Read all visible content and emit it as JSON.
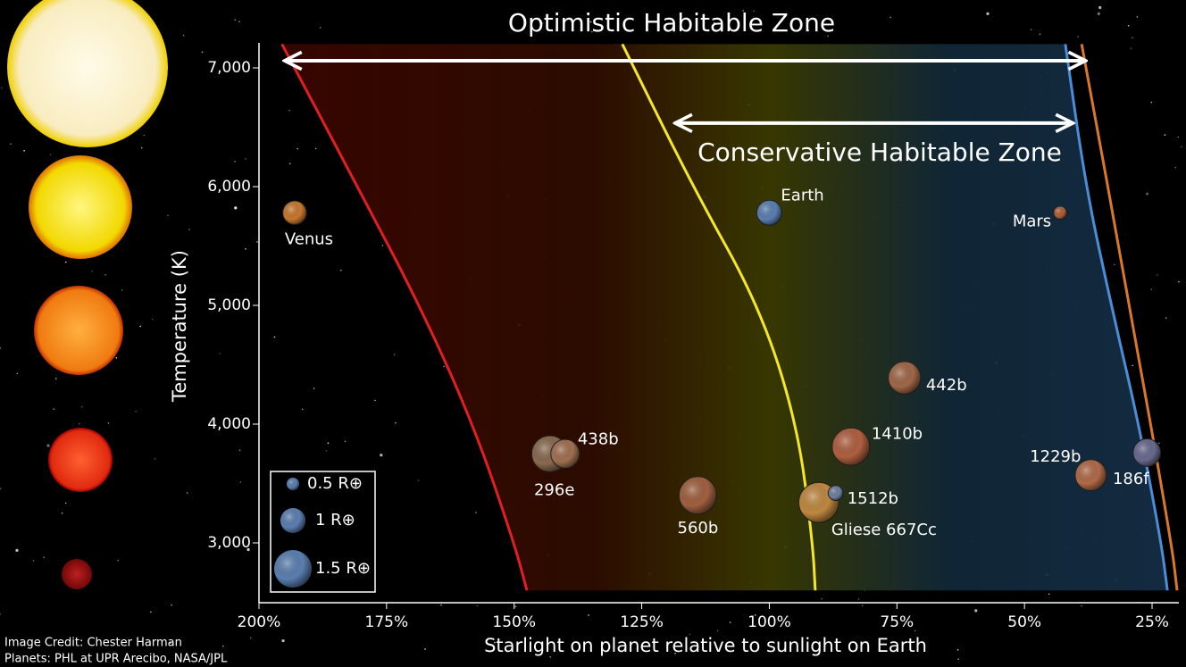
{
  "chart_data": {
    "type": "scatter",
    "title": "Optimistic Habitable Zone",
    "x_label": "Starlight on planet relative to sunlight on Earth",
    "y_label": "Temperature (K)",
    "credits": [
      "Image Credit: Chester Harman",
      "Planets:  PHL at UPR Arecibo, NASA/JPL"
    ],
    "xlim": [
      205,
      20
    ],
    "ylim": [
      2500,
      7200
    ],
    "xticks": [
      {
        "value": 200,
        "label": "200%"
      },
      {
        "value": 175,
        "label": "175%"
      },
      {
        "value": 150,
        "label": "150%"
      },
      {
        "value": 125,
        "label": "125%"
      },
      {
        "value": 100,
        "label": "100%"
      },
      {
        "value": 75,
        "label": "75%"
      },
      {
        "value": 50,
        "label": "50%"
      },
      {
        "value": 25,
        "label": "25%"
      }
    ],
    "yticks": [
      {
        "value": 3000,
        "label": "3,000"
      },
      {
        "value": 4000,
        "label": "4,000"
      },
      {
        "value": 5000,
        "label": "5,000"
      },
      {
        "value": 6000,
        "label": "6,000"
      },
      {
        "value": 7000,
        "label": "7,000"
      }
    ],
    "arrows": [
      {
        "label": "Optimistic Habitable Zone",
        "x": [
          195,
          38
        ],
        "y": 7060
      },
      {
        "label": "Conservative Habitable Zone",
        "x": [
          118.5,
          40.5
        ],
        "y": 6535
      }
    ],
    "boundaries": [
      {
        "color": "#e02020",
        "x": [
          195.5,
          180.7,
          168.5,
          158,
          150,
          147.5
        ],
        "y": [
          7200,
          6000,
          5000,
          4000,
          3000,
          2600
        ]
      },
      {
        "color": "#f5e62a",
        "x": [
          128.8,
          115,
          102,
          94.5,
          91.5,
          91
        ],
        "y": [
          7200,
          6000,
          5000,
          4000,
          3000,
          2600
        ]
      },
      {
        "color": "#4a8ed8",
        "x": [
          42,
          38,
          33,
          27.6,
          23.2,
          22
        ],
        "y": [
          7200,
          6000,
          5000,
          4000,
          3000,
          2600
        ]
      },
      {
        "color": "#d9782a",
        "x": [
          38.8,
          29.4,
          21.2,
          20.1
        ],
        "y": [
          7200,
          5000,
          3000,
          2600
        ]
      }
    ],
    "points": [
      {
        "name": "Venus",
        "x": 193,
        "y": 5780,
        "size": 0.95,
        "color": "#c8782e"
      },
      {
        "name": "Earth",
        "x": 100,
        "y": 5780,
        "size": 1,
        "color": "#5b7fb0"
      },
      {
        "name": "Mars",
        "x": 43,
        "y": 5780,
        "size": 0.53,
        "color": "#b0603a"
      },
      {
        "name": "296e",
        "x": 143,
        "y": 3750,
        "size": 1.45,
        "color": "#8a6a50"
      },
      {
        "name": "438b",
        "x": 140,
        "y": 3750,
        "size": 1.15,
        "color": "#a07050"
      },
      {
        "name": "560b",
        "x": 114,
        "y": 3400,
        "size": 1.5,
        "color": "#a06040"
      },
      {
        "name": "Gliese 667Cc",
        "x": 90.3,
        "y": 3340,
        "size": 1.6,
        "color": "#c08840"
      },
      {
        "name": "1512b",
        "x": 87,
        "y": 3420,
        "size": 0.6,
        "color": "#7080a0"
      },
      {
        "name": "1410b",
        "x": 84,
        "y": 3810,
        "size": 1.5,
        "color": "#b06040"
      },
      {
        "name": "442b",
        "x": 73.5,
        "y": 4390,
        "size": 1.3,
        "color": "#a06848"
      },
      {
        "name": "1229b",
        "x": 37,
        "y": 3570,
        "size": 1.25,
        "color": "#b06a48"
      },
      {
        "name": "186f",
        "x": 26,
        "y": 3760,
        "size": 1.1,
        "color": "#6a6a90"
      }
    ],
    "size_legend": [
      {
        "size": 0.5,
        "label": "0.5 R⊕"
      },
      {
        "size": 1,
        "label": "1 R⊕"
      },
      {
        "size": 1.5,
        "label": "1.5 R⊕"
      }
    ]
  }
}
